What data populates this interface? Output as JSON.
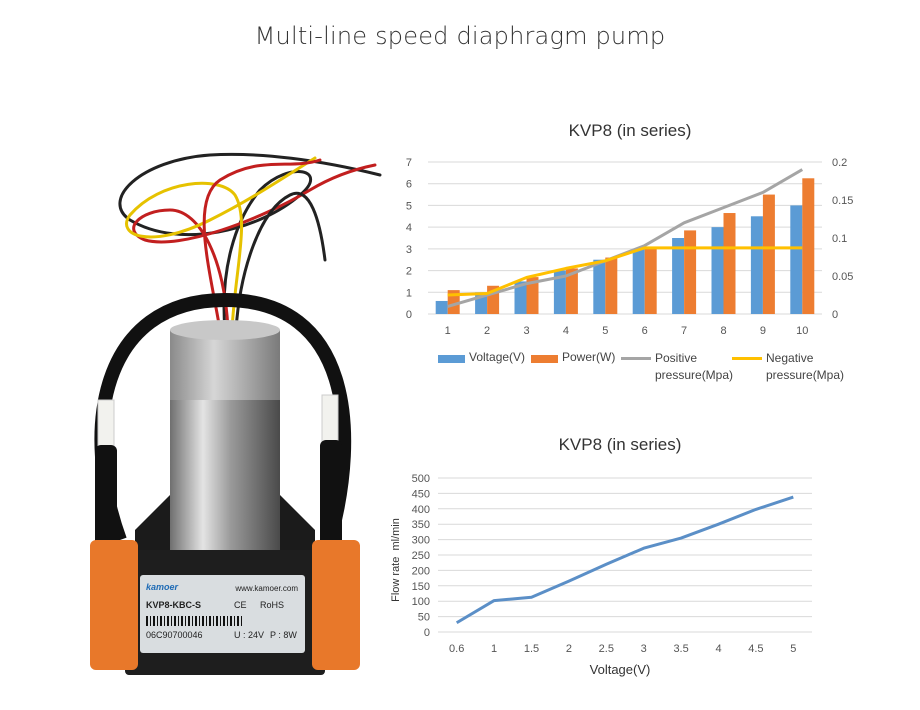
{
  "page": {
    "title": "Multi-line speed diaphragm pump"
  },
  "product": {
    "brand": "kamoer",
    "website": "www.kamoer.com",
    "model": "KVP8-KBC-S",
    "certifications": [
      "CE",
      "RoHS"
    ],
    "serial": "06C90700046",
    "voltage_label": "U : 24V",
    "power_label": "P : 8W",
    "colors": {
      "body": "#1e1e1e",
      "heads": "#e8782a",
      "cylinder": "#b8b8b8"
    }
  },
  "chart_data": [
    {
      "type": "bar",
      "title": "KVP8 (in series)",
      "categories": [
        "1",
        "2",
        "3",
        "4",
        "5",
        "6",
        "7",
        "8",
        "9",
        "10"
      ],
      "series": [
        {
          "name": "Voltage(V)",
          "type": "bar",
          "axis": "left",
          "color": "#5b9bd5",
          "values": [
            0.6,
            1,
            1.5,
            2,
            2.5,
            3,
            3.5,
            4,
            4.5,
            5
          ]
        },
        {
          "name": "Power(W)",
          "type": "bar",
          "axis": "left",
          "color": "#ed7d31",
          "values": [
            1.1,
            1.3,
            1.7,
            2.1,
            2.6,
            3.1,
            3.85,
            4.65,
            5.5,
            6.25
          ]
        },
        {
          "name": "Positive pressure(Mpa)",
          "type": "line",
          "axis": "right",
          "color": "#a5a5a5",
          "values": [
            0.01,
            0.025,
            0.04,
            0.05,
            0.07,
            0.09,
            0.12,
            0.14,
            0.16,
            0.19
          ]
        },
        {
          "name": "Negative pressure(Mpa)",
          "type": "line",
          "axis": "right",
          "color": "#ffc000",
          "values": [
            0.025,
            0.027,
            0.048,
            0.06,
            0.07,
            0.087,
            0.087,
            0.087,
            0.087,
            0.087
          ]
        }
      ],
      "ylim": [
        0,
        7
      ],
      "yticks": [
        "0",
        "1",
        "2",
        "3",
        "4",
        "5",
        "6",
        "7"
      ],
      "y2lim": [
        0,
        0.2
      ],
      "y2ticks": [
        "0",
        "0.05",
        "0.1",
        "0.15",
        "0.2"
      ],
      "xlabel": "",
      "ylabel": "",
      "grid": true,
      "legend_position": "bottom",
      "legend": [
        {
          "label": "Voltage(V)",
          "color": "#5b9bd5",
          "kind": "box"
        },
        {
          "label": "Power(W)",
          "color": "#ed7d31",
          "kind": "box"
        },
        {
          "label_line1": "Positive",
          "label_line2": "pressure(Mpa)",
          "color": "#a5a5a5",
          "kind": "line"
        },
        {
          "label_line1": "Negative",
          "label_line2": "pressure(Mpa)",
          "color": "#ffc000",
          "kind": "line"
        }
      ]
    },
    {
      "type": "line",
      "title": "KVP8 (in series)",
      "x": [
        "0.6",
        "1",
        "1.5",
        "2",
        "2.5",
        "3",
        "3.5",
        "4",
        "4.5",
        "5"
      ],
      "series": [
        {
          "name": "Flow rate",
          "color": "#5b8fc7",
          "values": [
            30,
            102,
            113,
            165,
            220,
            272,
            305,
            350,
            398,
            438
          ]
        }
      ],
      "xlabel": "Voltage(V)",
      "ylabel": "Flow rate  ml/min",
      "ylim": [
        0,
        500
      ],
      "yticks": [
        "0",
        "50",
        "100",
        "150",
        "200",
        "250",
        "300",
        "350",
        "400",
        "450",
        "500"
      ],
      "grid": true
    }
  ]
}
